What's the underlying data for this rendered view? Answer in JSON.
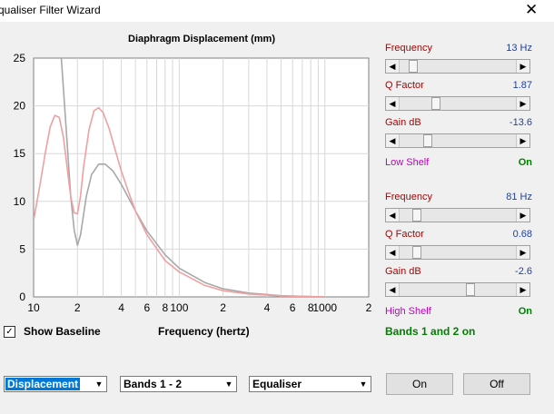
{
  "window": {
    "title": "qualiser Filter Wizard",
    "close_glyph": "✕"
  },
  "plot": {
    "title": "Diaphragm Displacement (mm)",
    "x_caption": "Frequency (hertz)"
  },
  "chart_data": {
    "type": "line",
    "title": "Diaphragm Displacement (mm)",
    "xlabel": "Frequency (hertz)",
    "ylabel": "",
    "x_scale": "log",
    "xlim": [
      10,
      2000
    ],
    "ylim": [
      0,
      25
    ],
    "yticks": [
      0,
      5,
      10,
      15,
      20,
      25
    ],
    "xtick_labels": [
      {
        "x": 10,
        "label": "10"
      },
      {
        "x": 20,
        "label": "2"
      },
      {
        "x": 40,
        "label": "4"
      },
      {
        "x": 60,
        "label": "6"
      },
      {
        "x": 80,
        "label": "8"
      },
      {
        "x": 100,
        "label": "100"
      },
      {
        "x": 200,
        "label": "2"
      },
      {
        "x": 400,
        "label": "4"
      },
      {
        "x": 600,
        "label": "6"
      },
      {
        "x": 800,
        "label": "8"
      },
      {
        "x": 1000,
        "label": "1000"
      },
      {
        "x": 2000,
        "label": "2"
      }
    ],
    "grid": true,
    "series": [
      {
        "color": "#a8a8a8",
        "x": [
          15.5,
          16,
          17,
          18,
          19,
          20,
          21,
          23,
          25,
          28,
          31,
          35,
          40,
          50,
          60,
          80,
          100,
          150,
          200,
          300,
          500,
          800,
          1000
        ],
        "y": [
          25,
          22,
          16,
          10.5,
          7,
          5.4,
          6.5,
          10.5,
          12.8,
          13.9,
          13.9,
          13.2,
          11.8,
          9.0,
          6.9,
          4.4,
          3.0,
          1.5,
          0.85,
          0.4,
          0.12,
          0.03,
          0.0
        ]
      },
      {
        "color": "#f0a0a0",
        "x": [
          10,
          11,
          12,
          13,
          14,
          15,
          16,
          17,
          18,
          19,
          20,
          21,
          22,
          24,
          26,
          28,
          30,
          33,
          36,
          40,
          45,
          50,
          60,
          80,
          100,
          150,
          200,
          300,
          500,
          800,
          1000
        ],
        "y": [
          8,
          11.5,
          15,
          17.8,
          19.0,
          18.8,
          16.8,
          13.5,
          10.5,
          8.8,
          8.7,
          10.6,
          13.5,
          17.5,
          19.5,
          19.8,
          19.3,
          17.6,
          15.6,
          13.2,
          10.9,
          9.0,
          6.5,
          3.8,
          2.6,
          1.2,
          0.65,
          0.3,
          0.1,
          0.03,
          0.0
        ]
      }
    ]
  },
  "band1": {
    "frequency_label": "Frequency",
    "frequency_value": "13 Hz",
    "frequency_pos": 0.08,
    "q_label": "Q Factor",
    "q_value": "1.87",
    "q_pos": 0.27,
    "gain_label": "Gain  dB",
    "gain_value": "-13.6",
    "gain_pos": 0.2,
    "shelf_label": "Low Shelf",
    "shelf_state": "On"
  },
  "band2": {
    "frequency_label": "Frequency",
    "frequency_value": "81 Hz",
    "frequency_pos": 0.11,
    "q_label": "Q Factor",
    "q_value": "0.68",
    "q_pos": 0.11,
    "gain_label": "Gain  dB",
    "gain_value": "-2.6",
    "gain_pos": 0.55,
    "shelf_label": "High Shelf",
    "shelf_state": "On"
  },
  "bands_status": "Bands 1 and 2 on",
  "show_baseline": {
    "label": "Show Baseline",
    "checked": true,
    "check_glyph": "✓"
  },
  "selects": {
    "view": "Displacement",
    "bands": "Bands 1 - 2",
    "mode": "Equaliser",
    "arrow": "▼"
  },
  "buttons": {
    "on": "On",
    "off": "Off"
  },
  "scroll_arrows": {
    "left": "◀",
    "right": "▶"
  }
}
